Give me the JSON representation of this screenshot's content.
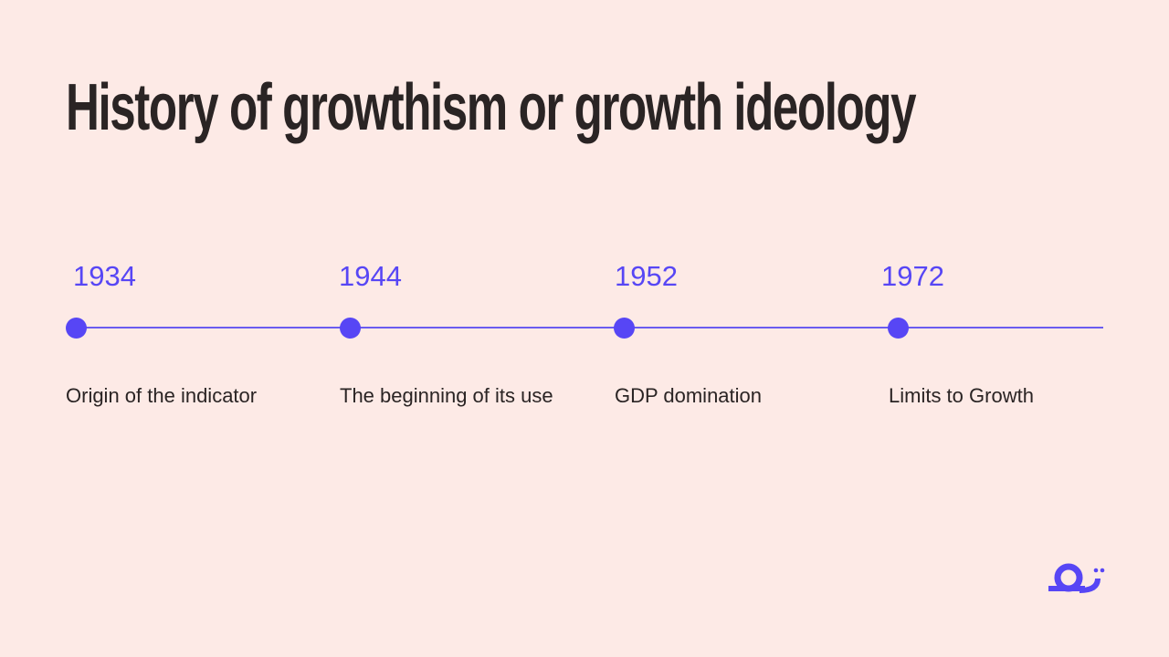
{
  "title": "History of growthism or growth ideology",
  "accent_color": "#5746f5",
  "background_color": "#fdeae6",
  "timeline": [
    {
      "year": "1934",
      "label": "Origin of the indicator"
    },
    {
      "year": "1944",
      "label": "The beginning of its use"
    },
    {
      "year": "1952",
      "label": "GDP domination"
    },
    {
      "year": "1972",
      "label": "Limits to Growth"
    }
  ],
  "logo": {
    "icon": "snail-logo-icon"
  }
}
